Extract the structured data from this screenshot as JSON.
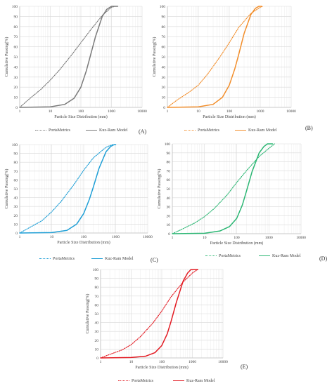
{
  "chart_data": [
    {
      "type": "line",
      "panel_label": "(A)",
      "xlabel": "Particle Size Distribution (mm)",
      "ylabel": "Cumulative Passing(%)",
      "xscale": "log",
      "xlim": [
        1,
        10000
      ],
      "ylim": [
        0,
        100
      ],
      "xticks": [
        "1",
        "10",
        "100",
        "1000",
        "10000"
      ],
      "yticks": [
        "0",
        "10",
        "20",
        "30",
        "40",
        "50",
        "60",
        "70",
        "80",
        "90",
        "100"
      ],
      "grid": true,
      "legend_position": "bottom",
      "series": [
        {
          "name": "PortaMetrics",
          "style": "dotted",
          "color": "#7a7a7a",
          "x": [
            1,
            2,
            5,
            10,
            20,
            50,
            100,
            200,
            500,
            1000,
            1300
          ],
          "y": [
            0,
            8,
            18,
            27,
            37,
            52,
            64,
            76,
            91,
            99,
            100
          ]
        },
        {
          "name": "Kuz-Ram Model",
          "style": "solid",
          "color": "#7a7a7a",
          "x": [
            1,
            10,
            30,
            60,
            100,
            150,
            200,
            300,
            500,
            700,
            1000,
            1600
          ],
          "y": [
            0,
            0.5,
            3,
            9,
            20,
            36,
            50,
            70,
            90,
            97,
            100,
            100
          ]
        }
      ]
    },
    {
      "type": "line",
      "panel_label": "(B)",
      "xlabel": "Particle Size Distribution (mm)",
      "ylabel": "Cumulative Passing(%)",
      "xscale": "log",
      "xlim": [
        1,
        10000
      ],
      "ylim": [
        0,
        100
      ],
      "xticks": [
        "1",
        "10",
        "100",
        "1000",
        "10000"
      ],
      "yticks": [
        "0",
        "10",
        "20",
        "30",
        "40",
        "50",
        "60",
        "70",
        "80",
        "90",
        "100"
      ],
      "grid": true,
      "legend_position": "bottom",
      "series": [
        {
          "name": "PortaMetrics",
          "style": "dotted",
          "color": "#f28e2b",
          "x": [
            1,
            2,
            5,
            10,
            20,
            50,
            100,
            200,
            500,
            1000,
            1200
          ],
          "y": [
            0,
            7,
            15,
            22,
            33,
            50,
            64,
            79,
            93,
            99,
            100
          ]
        },
        {
          "name": "Kuz-Ram Model",
          "style": "solid",
          "color": "#f28e2b",
          "x": [
            1,
            10,
            30,
            60,
            100,
            150,
            200,
            300,
            500,
            700,
            900,
            1100
          ],
          "y": [
            0,
            0.5,
            3,
            10,
            22,
            38,
            52,
            73,
            92,
            98,
            100,
            100
          ]
        }
      ]
    },
    {
      "type": "line",
      "panel_label": "(C)",
      "xlabel": "Particle Size Distribution (mm)",
      "ylabel": "Cumulative Passing(%)",
      "xscale": "log",
      "xlim": [
        1,
        10000
      ],
      "ylim": [
        0,
        100
      ],
      "xticks": [
        "1",
        "10",
        "100",
        "1000",
        "10000"
      ],
      "yticks": [
        "0",
        "10",
        "20",
        "30",
        "40",
        "50",
        "60",
        "70",
        "80",
        "90",
        "100"
      ],
      "grid": true,
      "legend_position": "bottom",
      "series": [
        {
          "name": "PortaMetrics",
          "style": "dotted",
          "color": "#1f9fd6",
          "x": [
            1,
            2,
            5,
            10,
            20,
            50,
            100,
            200,
            500,
            800
          ],
          "y": [
            0,
            6,
            14,
            24,
            36,
            55,
            71,
            85,
            97,
            100
          ]
        },
        {
          "name": "Kuz-Ram Model",
          "style": "solid",
          "color": "#1f9fd6",
          "x": [
            1,
            10,
            30,
            60,
            100,
            150,
            200,
            300,
            500,
            700,
            900,
            1000
          ],
          "y": [
            0,
            0.5,
            3,
            10,
            22,
            38,
            52,
            73,
            92,
            98,
            100,
            100
          ]
        }
      ]
    },
    {
      "type": "line",
      "panel_label": "(D)",
      "xlabel": "Particle Size Distribution (mm)",
      "ylabel": "Cumulative Passing(%)",
      "xscale": "log",
      "xlim": [
        1,
        10000
      ],
      "ylim": [
        0,
        100
      ],
      "xticks": [
        "1",
        "10",
        "100",
        "1000",
        "10000"
      ],
      "yticks": [
        "0",
        "10",
        "20",
        "30",
        "40",
        "50",
        "60",
        "70",
        "80",
        "90",
        "100"
      ],
      "grid": true,
      "legend_position": "bottom",
      "series": [
        {
          "name": "PortaMetrics",
          "style": "dotted",
          "color": "#2bb673",
          "x": [
            1,
            2,
            5,
            10,
            20,
            50,
            100,
            200,
            500,
            1000,
            1500
          ],
          "y": [
            0,
            5,
            12,
            19,
            28,
            43,
            57,
            70,
            86,
            95,
            100
          ]
        },
        {
          "name": "Kuz-Ram Model",
          "style": "solid",
          "color": "#2bb673",
          "x": [
            1,
            10,
            30,
            60,
            100,
            150,
            200,
            300,
            500,
            700,
            900,
            1300
          ],
          "y": [
            0,
            0.5,
            3,
            8,
            17,
            32,
            47,
            69,
            90,
            97,
            100,
            100
          ]
        }
      ]
    },
    {
      "type": "line",
      "panel_label": "(E)",
      "xlabel": "Particle Size Distribution (mm)",
      "ylabel": "Cumulative Passing(%)",
      "xscale": "log",
      "xlim": [
        1,
        10000
      ],
      "ylim": [
        0,
        100
      ],
      "xticks": [
        "1",
        "10",
        "100",
        "1000",
        "10000"
      ],
      "yticks": [
        "0",
        "10",
        "20",
        "30",
        "40",
        "50",
        "60",
        "70",
        "80",
        "90",
        "100"
      ],
      "grid": true,
      "legend_position": "bottom",
      "series": [
        {
          "name": "PortaMetrics",
          "style": "dotted",
          "color": "#e31b23",
          "x": [
            1,
            2,
            5,
            10,
            20,
            50,
            100,
            200,
            500,
            1000,
            1500
          ],
          "y": [
            0,
            4,
            9,
            15,
            24,
            39,
            53,
            69,
            86,
            96,
            100
          ]
        },
        {
          "name": "Kuz-Ram Model",
          "style": "solid",
          "color": "#e31b23",
          "x": [
            1,
            10,
            30,
            60,
            100,
            150,
            200,
            300,
            500,
            700,
            900,
            1500
          ],
          "y": [
            0,
            0.5,
            2,
            6,
            14,
            27,
            41,
            63,
            87,
            96,
            100,
            100
          ]
        }
      ]
    }
  ]
}
